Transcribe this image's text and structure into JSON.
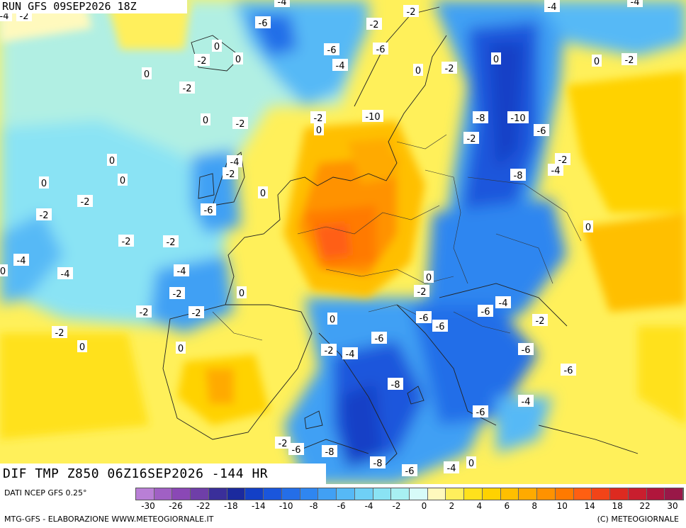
{
  "header": {
    "run_title": "RUN GFS 09SEP2026 18Z"
  },
  "field_title": "DIF TMP Z850 06Z16SEP2026 -144 HR",
  "footer": {
    "source": "DATI NCEP GFS 0.25°",
    "producer": "MTG-GFS - ELABORAZIONE WWW.METEOGIORNALE.IT",
    "copyright": "(C) METEOGIORNALE"
  },
  "colors": {
    "scale": [
      "#b97fd6",
      "#a060c4",
      "#8a48b5",
      "#6f3fa8",
      "#3a2f9a",
      "#1b2a9e",
      "#1340c6",
      "#1a56dc",
      "#246ee8",
      "#2f86f0",
      "#41a0f4",
      "#56b9f6",
      "#6fd0f6",
      "#8ae3f4",
      "#a8f0f2",
      "#d7fbf8",
      "#fff9bd",
      "#ffef5c",
      "#ffe11c",
      "#ffd200",
      "#ffbf00",
      "#ffaa00",
      "#ff9200",
      "#ff7a00",
      "#ff5f12",
      "#f24418",
      "#dd2a20",
      "#c91e2e",
      "#b0163c",
      "#991848"
    ]
  },
  "legend": {
    "ticks": [
      "-30",
      "-26",
      "-22",
      "-18",
      "-14",
      "-10",
      "-8",
      "-6",
      "-4",
      "-2",
      "0",
      "2",
      "4",
      "6",
      "8",
      "10",
      "14",
      "18",
      "22",
      "30"
    ]
  },
  "map_labels": [
    "-4",
    "-2",
    "-6",
    "-4",
    "-2",
    "-2",
    "-4",
    "-4",
    "-6",
    "-2",
    "0",
    "0",
    "-4",
    "0",
    "0",
    "-2",
    "-6",
    "-2",
    "-2",
    "-10",
    "0",
    "-2",
    "0",
    "-2",
    "0",
    "-8",
    "-10",
    "-6",
    "0",
    "-2",
    "-6",
    "0",
    "-2",
    "0",
    "-4",
    "0",
    "-2",
    "-2",
    "-8",
    "0",
    "0",
    "-4",
    "-6",
    "-2",
    "0",
    "-2",
    "-4",
    "-4",
    "-2",
    "-2",
    "0",
    "-2",
    "-2",
    "-4",
    "-2",
    "0",
    "-6",
    "-4",
    "-2",
    "-6",
    "-6",
    "0",
    "-2",
    "-6",
    "-4",
    "0",
    "-2",
    "-8",
    "0",
    "-4",
    "-6",
    "-8",
    "-2",
    "-6",
    "-8",
    "-6",
    "-4",
    "0",
    "-6"
  ]
}
